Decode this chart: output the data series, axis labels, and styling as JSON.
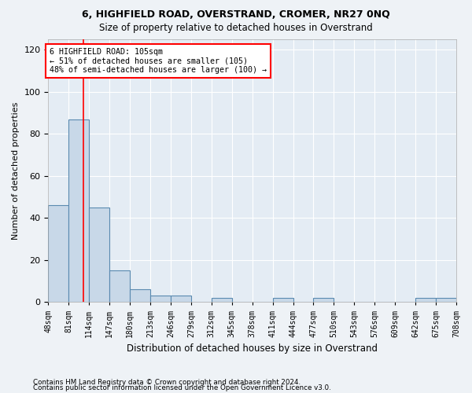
{
  "title1": "6, HIGHFIELD ROAD, OVERSTRAND, CROMER, NR27 0NQ",
  "title2": "Size of property relative to detached houses in Overstrand",
  "xlabel": "Distribution of detached houses by size in Overstrand",
  "ylabel": "Number of detached properties",
  "bin_edges": [
    48,
    81,
    114,
    147,
    180,
    213,
    246,
    279,
    312,
    345,
    378,
    411,
    444,
    477,
    510,
    543,
    576,
    609,
    642,
    675,
    708
  ],
  "bar_heights": [
    46,
    87,
    45,
    15,
    6,
    3,
    3,
    0,
    2,
    0,
    0,
    2,
    0,
    2,
    0,
    0,
    0,
    0,
    2,
    2
  ],
  "bar_color": "#c8d8e8",
  "bar_edge_color": "#5a8ab0",
  "red_line_x": 105,
  "annotation_box_text": "6 HIGHFIELD ROAD: 105sqm\n← 51% of detached houses are smaller (105)\n48% of semi-detached houses are larger (100) →",
  "ylim": [
    0,
    125
  ],
  "yticks": [
    0,
    20,
    40,
    60,
    80,
    100,
    120
  ],
  "footnote1": "Contains HM Land Registry data © Crown copyright and database right 2024.",
  "footnote2": "Contains public sector information licensed under the Open Government Licence v3.0.",
  "background_color": "#eef2f6",
  "plot_bg_color": "#e4ecf4"
}
